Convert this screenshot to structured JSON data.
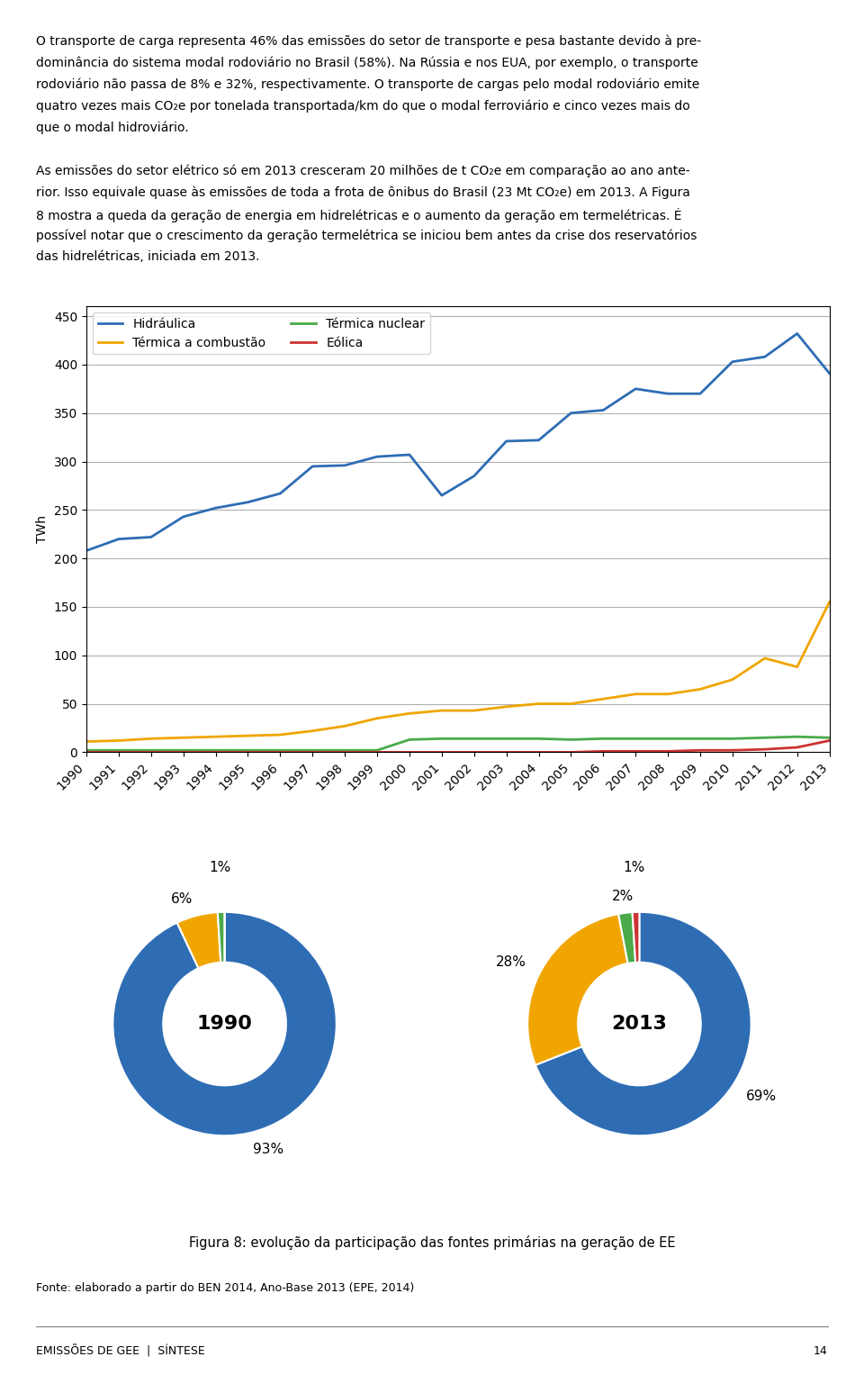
{
  "paragraphs": [
    [
      "O transporte de carga representa 46% das emissões do setor de transporte e pesa bastante devido à pre-",
      "dominância do sistema modal rodoviário no Brasil (58%). Na Rússia e nos EUA, por exemplo, o transporte",
      "rodoviário não passa de 8% e 32%, respectivamente. O transporte de cargas pelo modal rodoviário emite",
      "quatro vezes mais CO₂e por tonelada transportada/km do que o modal ferroviário e cinco vezes mais do",
      "que o modal hidroviário."
    ],
    [
      "As emissões do setor elétrico só em 2013 cresceram 20 milhões de t CO₂e em comparação ao ano ante-",
      "rior. Isso equivale quase às emissões de toda a frota de ônibus do Brasil (23 Mt CO₂e) em 2013. A Figura",
      "8 mostra a queda da geração de energia em hidrelétricas e o aumento da geração em termelétricas. É",
      "possível notar que o crescimento da geração termelétrica se iniciou bem antes da crise dos reservatórios",
      "das hidrelétricas, iniciada em 2013."
    ]
  ],
  "caption": "Figura 8: evolução da participação das fontes primárias na geração de EE",
  "source": "Fonte: elaborado a partir do BEN 2014, Ano-Base 2013 (EPE, 2014)",
  "footer": [
    "EMISSÕES DE GEE  |  SÍNTESE",
    "14"
  ],
  "chart_data": [
    {
      "type": "line",
      "x": [
        1990,
        1991,
        1992,
        1993,
        1994,
        1995,
        1996,
        1997,
        1998,
        1999,
        2000,
        2001,
        2002,
        2003,
        2004,
        2005,
        2006,
        2007,
        2008,
        2009,
        2010,
        2011,
        2012,
        2013
      ],
      "xlim": [
        1990,
        2013
      ],
      "xticks": [
        1990,
        1991,
        1992,
        1993,
        1994,
        1995,
        1996,
        1997,
        1998,
        1999,
        2000,
        2001,
        2002,
        2003,
        2004,
        2005,
        2006,
        2007,
        2008,
        2009,
        2010,
        2011,
        2012,
        2013
      ],
      "ylim": [
        0,
        460
      ],
      "yticks": [
        0,
        50,
        100,
        150,
        200,
        250,
        300,
        350,
        400,
        450
      ],
      "ylabel": "TWh",
      "grid": true,
      "legend": "upper left",
      "series": [
        {
          "name": "Hidráulica",
          "color": "#2e6db4",
          "values": [
            208,
            220,
            222,
            243,
            252,
            258,
            267,
            295,
            296,
            305,
            307,
            265,
            285,
            321,
            322,
            350,
            353,
            375,
            370,
            370,
            403,
            408,
            432,
            391
          ]
        },
        {
          "name": "Térmica a combustão",
          "color": "#f0a500",
          "values": [
            11,
            12,
            14,
            15,
            16,
            17,
            18,
            22,
            27,
            35,
            40,
            43,
            43,
            47,
            50,
            50,
            55,
            60,
            60,
            65,
            75,
            97,
            88,
            155
          ]
        },
        {
          "name": "Térmica nuclear",
          "color": "#4aaa4a",
          "values": [
            2,
            2,
            2,
            2,
            2,
            2,
            2,
            2,
            2,
            2,
            13,
            14,
            14,
            14,
            14,
            13,
            14,
            14,
            14,
            14,
            14,
            15,
            16,
            15
          ]
        },
        {
          "name": "Eólica",
          "color": "#cc3333",
          "values": [
            0,
            0,
            0,
            0,
            0,
            0,
            0,
            0,
            0,
            0,
            0,
            0,
            0,
            0,
            0,
            0,
            1,
            1,
            1,
            2,
            2,
            3,
            5,
            12
          ]
        }
      ]
    },
    {
      "type": "pie",
      "title": "1990",
      "categories": [
        "Hidráulica",
        "Térmica a combustão",
        "Térmica nuclear",
        "Eólica"
      ],
      "values": [
        93,
        6,
        1,
        0
      ],
      "value_labels": [
        "93%",
        "6%",
        "1%",
        null
      ],
      "colors": [
        "#2e6db4",
        "#f0a500",
        "#4aaa4a",
        "#cc3333"
      ],
      "data_labels": true
    },
    {
      "type": "pie",
      "title": "2013",
      "categories": [
        "Hidráulica",
        "Térmica a combustão",
        "Térmica nuclear",
        "Eólica"
      ],
      "values": [
        69,
        28,
        2,
        1
      ],
      "value_labels": [
        "69%",
        "28%",
        "2%",
        "1%"
      ],
      "colors": [
        "#2e6db4",
        "#f0a500",
        "#4aaa4a",
        "#cc3333"
      ],
      "data_labels": true
    }
  ]
}
